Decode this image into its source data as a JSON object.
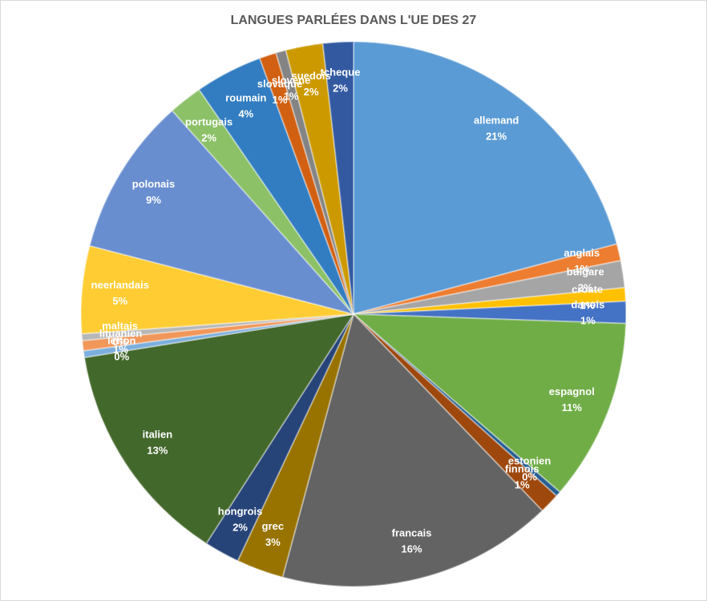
{
  "chart_data": {
    "type": "pie",
    "title": "LANGUES PARLÉES DANS L'UE DES 27",
    "categories": [
      "allemand",
      "anglais",
      "bulgare",
      "croate",
      "danois",
      "espagnol",
      "estonien",
      "finnois",
      "francais",
      "grec",
      "hongrois",
      "italien",
      "letton",
      "lituanien",
      "maltais",
      "neerlandais",
      "polonais",
      "portugais",
      "roumain",
      "slovaque",
      "slovene",
      "suedois",
      "tcheque"
    ],
    "values": [
      20.9,
      1.0,
      1.6,
      0.8,
      1.3,
      10.8,
      0.3,
      1.2,
      16.4,
      2.8,
      2.1,
      13.4,
      0.4,
      0.6,
      0.4,
      5.2,
      9.4,
      2.0,
      4.0,
      1.0,
      0.6,
      2.2,
      1.8
    ],
    "value_labels": [
      "21%",
      "1%",
      "2%",
      "1%",
      "1%",
      "11%",
      "0%",
      "1%",
      "16%",
      "3%",
      "2%",
      "13%",
      "0%",
      "1%",
      "0%",
      "5%",
      "9%",
      "2%",
      "4%",
      "1%",
      "1%",
      "2%",
      "2%"
    ],
    "colors": [
      "#5b9bd5",
      "#ed7d31",
      "#a5a5a5",
      "#ffc000",
      "#4472c4",
      "#70ad47",
      "#255e91",
      "#9e480e",
      "#636363",
      "#997300",
      "#264478",
      "#43682b",
      "#7cafdd",
      "#f1975a",
      "#b7b7b7",
      "#ffcd33",
      "#698ed0",
      "#8cc168",
      "#327dc2",
      "#d26012",
      "#848484",
      "#cc9a00",
      "#335aa1"
    ]
  }
}
